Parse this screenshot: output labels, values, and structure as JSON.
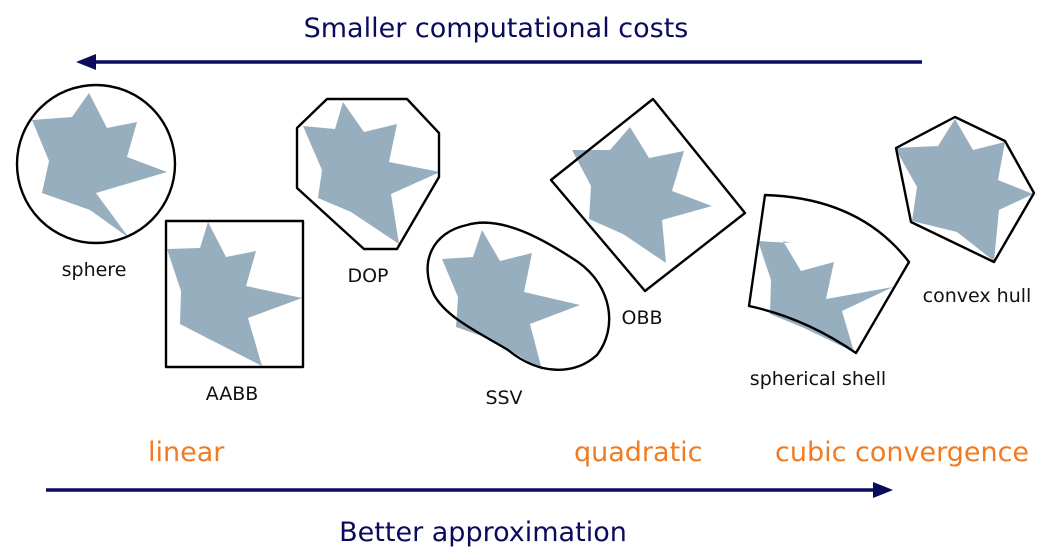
{
  "title_top": "Smaller computational costs",
  "title_bottom": "Better approximation",
  "colors": {
    "arrow": "#0b0b5e",
    "accent": "#f07b22",
    "shape_fill": "#97aebf",
    "outline": "#000000"
  },
  "volumes": [
    {
      "label": "sphere"
    },
    {
      "label": "AABB"
    },
    {
      "label": "DOP"
    },
    {
      "label": "SSV"
    },
    {
      "label": "OBB"
    },
    {
      "label": "spherical shell"
    },
    {
      "label": "convex hull"
    }
  ],
  "convergence": {
    "linear": "linear",
    "quadratic": "quadratic",
    "cubic": "cubic convergence"
  }
}
